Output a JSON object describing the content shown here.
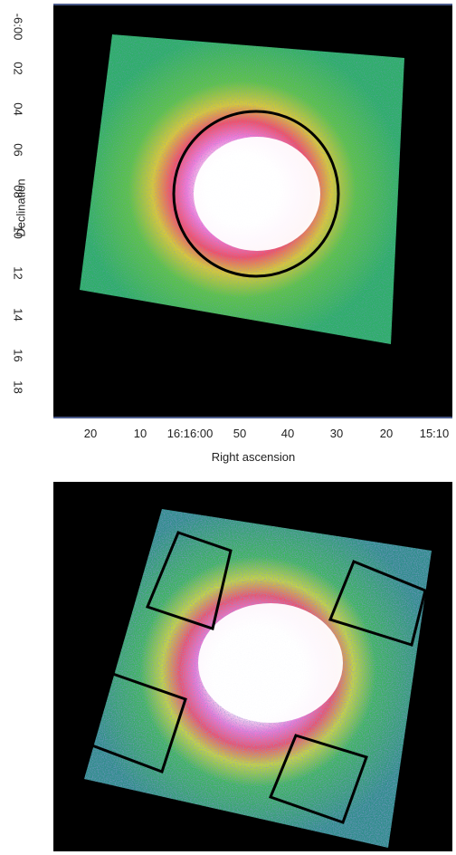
{
  "top_panel": {
    "y_axis": {
      "label": "Declination",
      "ticks": [
        "-6:00",
        "02",
        "04",
        "06",
        "08",
        "10",
        "12",
        "14",
        "16",
        "18"
      ]
    },
    "x_axis": {
      "label": "Right ascension",
      "ticks": [
        "20",
        "10",
        "16:16:00",
        "50",
        "40",
        "30",
        "20",
        "15:10"
      ]
    },
    "colormap": [
      "#000000",
      "#3d4f9e",
      "#2f9e8a",
      "#3cc25a",
      "#c8d83a",
      "#e8a030",
      "#f0506a",
      "#f07ad8",
      "#ffffff"
    ]
  },
  "bottom_panel": {
    "region_count": 4
  }
}
